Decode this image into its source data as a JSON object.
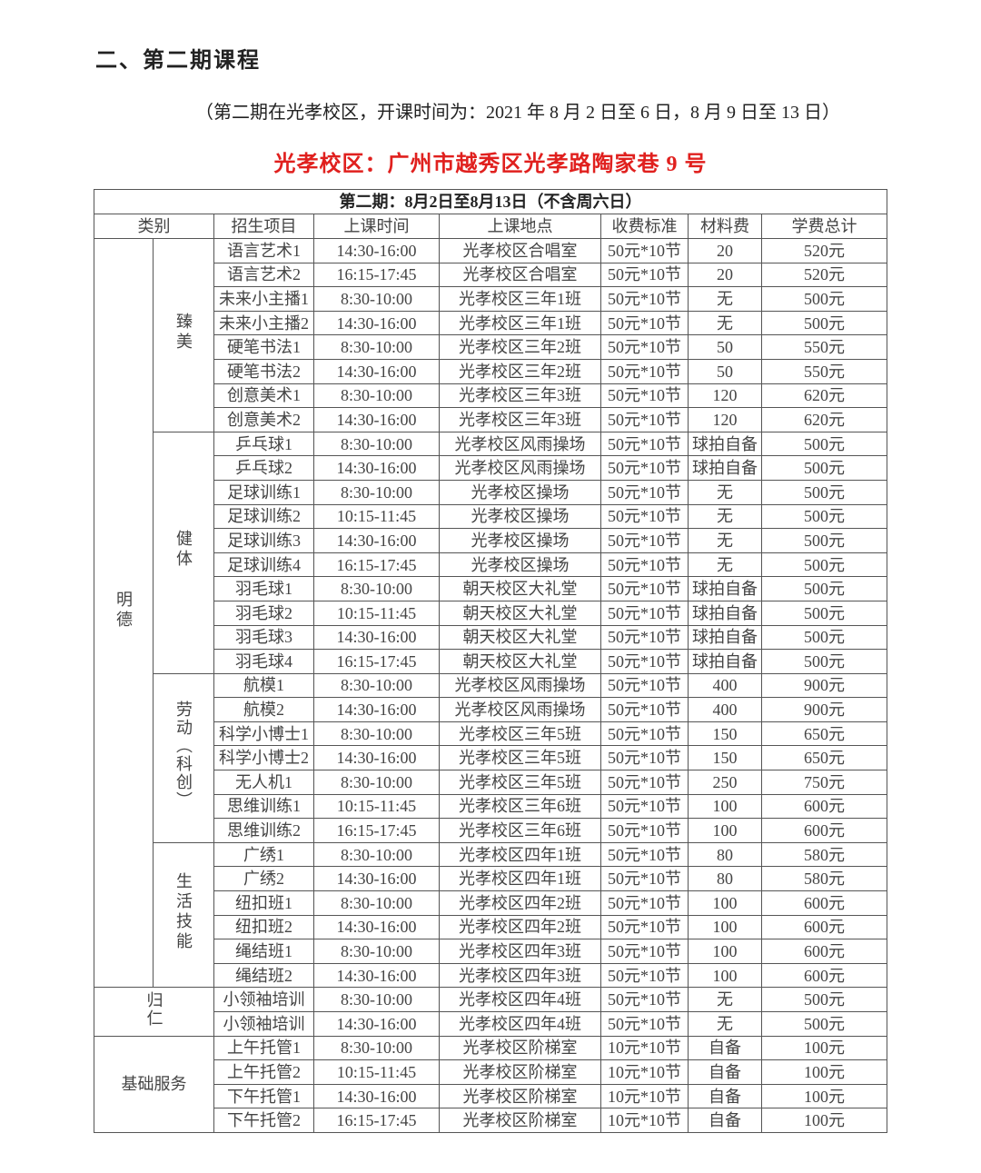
{
  "heading": "二、第二期课程",
  "subtitle": "（第二期在光孝校区，开课时间为：2021 年 8 月 2 日至 6 日，8 月 9 日至 13 日）",
  "address": "光孝校区：广州市越秀区光孝路陶家巷 9 号",
  "colors": {
    "address": "#e0201e",
    "border": "#555555"
  },
  "table": {
    "title": "第二期：8月2日至8月13日（不含周六日）",
    "headers": [
      "类别",
      "招生项目",
      "上课时间",
      "上课地点",
      "收费标准",
      "材料费",
      "学费总计"
    ],
    "groups": [
      {
        "name": "明德",
        "subgroups": [
          {
            "name": "臻美",
            "rows": [
              [
                "语言艺术1",
                "14:30-16:00",
                "光孝校区合唱室",
                "50元*10节",
                "20",
                "520元"
              ],
              [
                "语言艺术2",
                "16:15-17:45",
                "光孝校区合唱室",
                "50元*10节",
                "20",
                "520元"
              ],
              [
                "未来小主播1",
                "8:30-10:00",
                "光孝校区三年1班",
                "50元*10节",
                "无",
                "500元"
              ],
              [
                "未来小主播2",
                "14:30-16:00",
                "光孝校区三年1班",
                "50元*10节",
                "无",
                "500元"
              ],
              [
                "硬笔书法1",
                "8:30-10:00",
                "光孝校区三年2班",
                "50元*10节",
                "50",
                "550元"
              ],
              [
                "硬笔书法2",
                "14:30-16:00",
                "光孝校区三年2班",
                "50元*10节",
                "50",
                "550元"
              ],
              [
                "创意美术1",
                "8:30-10:00",
                "光孝校区三年3班",
                "50元*10节",
                "120",
                "620元"
              ],
              [
                "创意美术2",
                "14:30-16:00",
                "光孝校区三年3班",
                "50元*10节",
                "120",
                "620元"
              ]
            ]
          },
          {
            "name": "健体",
            "rows": [
              [
                "乒乓球1",
                "8:30-10:00",
                "光孝校区风雨操场",
                "50元*10节",
                "球拍自备",
                "500元"
              ],
              [
                "乒乓球2",
                "14:30-16:00",
                "光孝校区风雨操场",
                "50元*10节",
                "球拍自备",
                "500元"
              ],
              [
                "足球训练1",
                "8:30-10:00",
                "光孝校区操场",
                "50元*10节",
                "无",
                "500元"
              ],
              [
                "足球训练2",
                "10:15-11:45",
                "光孝校区操场",
                "50元*10节",
                "无",
                "500元"
              ],
              [
                "足球训练3",
                "14:30-16:00",
                "光孝校区操场",
                "50元*10节",
                "无",
                "500元"
              ],
              [
                "足球训练4",
                "16:15-17:45",
                "光孝校区操场",
                "50元*10节",
                "无",
                "500元"
              ],
              [
                "羽毛球1",
                "8:30-10:00",
                "朝天校区大礼堂",
                "50元*10节",
                "球拍自备",
                "500元"
              ],
              [
                "羽毛球2",
                "10:15-11:45",
                "朝天校区大礼堂",
                "50元*10节",
                "球拍自备",
                "500元"
              ],
              [
                "羽毛球3",
                "14:30-16:00",
                "朝天校区大礼堂",
                "50元*10节",
                "球拍自备",
                "500元"
              ],
              [
                "羽毛球4",
                "16:15-17:45",
                "朝天校区大礼堂",
                "50元*10节",
                "球拍自备",
                "500元"
              ]
            ]
          },
          {
            "name": "劳动（科创）",
            "rows": [
              [
                "航模1",
                "8:30-10:00",
                "光孝校区风雨操场",
                "50元*10节",
                "400",
                "900元"
              ],
              [
                "航模2",
                "14:30-16:00",
                "光孝校区风雨操场",
                "50元*10节",
                "400",
                "900元"
              ],
              [
                "科学小博士1",
                "8:30-10:00",
                "光孝校区三年5班",
                "50元*10节",
                "150",
                "650元"
              ],
              [
                "科学小博士2",
                "14:30-16:00",
                "光孝校区三年5班",
                "50元*10节",
                "150",
                "650元"
              ],
              [
                "无人机1",
                "8:30-10:00",
                "光孝校区三年5班",
                "50元*10节",
                "250",
                "750元"
              ],
              [
                "思维训练1",
                "10:15-11:45",
                "光孝校区三年6班",
                "50元*10节",
                "100",
                "600元"
              ],
              [
                "思维训练2",
                "16:15-17:45",
                "光孝校区三年6班",
                "50元*10节",
                "100",
                "600元"
              ]
            ]
          },
          {
            "name": "生活技能",
            "rows": [
              [
                "广绣1",
                "8:30-10:00",
                "光孝校区四年1班",
                "50元*10节",
                "80",
                "580元"
              ],
              [
                "广绣2",
                "14:30-16:00",
                "光孝校区四年1班",
                "50元*10节",
                "80",
                "580元"
              ],
              [
                "纽扣班1",
                "8:30-10:00",
                "光孝校区四年2班",
                "50元*10节",
                "100",
                "600元"
              ],
              [
                "纽扣班2",
                "14:30-16:00",
                "光孝校区四年2班",
                "50元*10节",
                "100",
                "600元"
              ],
              [
                "绳结班1",
                "8:30-10:00",
                "光孝校区四年3班",
                "50元*10节",
                "100",
                "600元"
              ],
              [
                "绳结班2",
                "14:30-16:00",
                "光孝校区四年3班",
                "50元*10节",
                "100",
                "600元"
              ]
            ]
          }
        ]
      },
      {
        "name": "归仁",
        "rows": [
          [
            "小领袖培训",
            "8:30-10:00",
            "光孝校区四年4班",
            "50元*10节",
            "无",
            "500元"
          ],
          [
            "小领袖培训",
            "14:30-16:00",
            "光孝校区四年4班",
            "50元*10节",
            "无",
            "500元"
          ]
        ]
      },
      {
        "name": "基础服务",
        "horizontal": true,
        "rows": [
          [
            "上午托管1",
            "8:30-10:00",
            "光孝校区阶梯室",
            "10元*10节",
            "自备",
            "100元"
          ],
          [
            "上午托管2",
            "10:15-11:45",
            "光孝校区阶梯室",
            "10元*10节",
            "自备",
            "100元"
          ],
          [
            "下午托管1",
            "14:30-16:00",
            "光孝校区阶梯室",
            "10元*10节",
            "自备",
            "100元"
          ],
          [
            "下午托管2",
            "16:15-17:45",
            "光孝校区阶梯室",
            "10元*10节",
            "自备",
            "100元"
          ]
        ]
      }
    ]
  }
}
